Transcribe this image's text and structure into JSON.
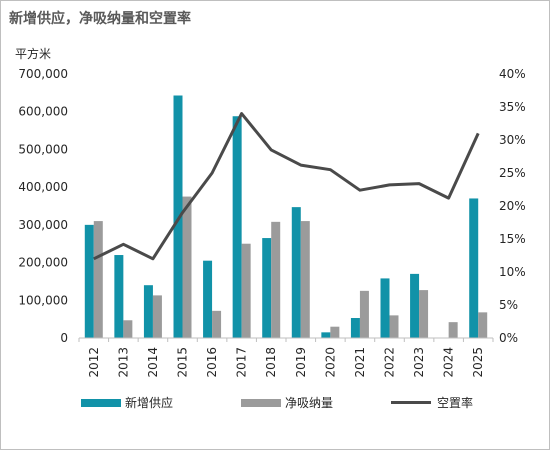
{
  "title": "新增供应，净吸纳量和空置率",
  "chart_data": {
    "type": "bar",
    "title": "新增供应，净吸纳量和空置率",
    "ylabel": "平方米",
    "categories": [
      "2012",
      "2013",
      "2014",
      "2015",
      "2016",
      "2017",
      "2018",
      "2019",
      "2020",
      "2021",
      "2022",
      "2023",
      "2024",
      "2025"
    ],
    "ylim": [
      0,
      700000
    ],
    "y_ticks": [
      "0",
      "100,000",
      "200,000",
      "300,000",
      "400,000",
      "500,000",
      "600,000",
      "700,000"
    ],
    "y2lim": [
      0,
      0.4
    ],
    "y2_ticks": [
      "0%",
      "5%",
      "10%",
      "15%",
      "20%",
      "25%",
      "30%",
      "35%",
      "40%"
    ],
    "series": [
      {
        "name": "新增供应",
        "type": "bar",
        "axis": "left",
        "color": "#1192A8",
        "values": [
          300000,
          220000,
          140000,
          643000,
          205000,
          588000,
          265000,
          347000,
          15000,
          53000,
          158000,
          170000,
          0,
          370000
        ]
      },
      {
        "name": "净吸纳量",
        "type": "bar",
        "axis": "left",
        "color": "#9B9B9B",
        "values": [
          310000,
          47000,
          113000,
          375000,
          72000,
          250000,
          308000,
          310000,
          30000,
          125000,
          60000,
          127000,
          42000,
          68000
        ]
      },
      {
        "name": "空置率",
        "type": "line",
        "axis": "right",
        "color": "#4A4A4A",
        "values": [
          0.12,
          0.142,
          0.12,
          0.19,
          0.25,
          0.34,
          0.285,
          0.262,
          0.255,
          0.224,
          0.232,
          0.234,
          0.212,
          0.31
        ]
      }
    ],
    "grid": false,
    "legend": "bottom"
  }
}
